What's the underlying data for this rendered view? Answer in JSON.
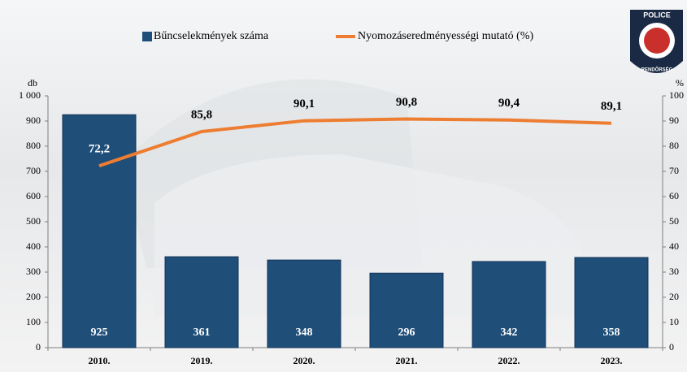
{
  "chart_data": {
    "type": "bar_line",
    "categories": [
      "2010.",
      "2019.",
      "2020.",
      "2021.",
      "2022.",
      "2023."
    ],
    "series": [
      {
        "name": "Bűncselekmények száma",
        "type": "bar",
        "color": "#1f4e79",
        "values": [
          925,
          361,
          348,
          296,
          342,
          358
        ]
      },
      {
        "name": "Nyomozáseredményességi mutató (%)",
        "type": "line",
        "axis": "y2",
        "color": "#ed7d31",
        "values": [
          72.2,
          85.8,
          90.1,
          90.8,
          90.4,
          89.1
        ],
        "value_labels": [
          "72,2",
          "85,8",
          "90,1",
          "90,8",
          "90,4",
          "89,1"
        ]
      }
    ],
    "y_label": "db",
    "y2_label": "%",
    "ylim": [
      0,
      1000
    ],
    "yticks": [
      0,
      100,
      200,
      300,
      400,
      500,
      600,
      700,
      800,
      900,
      {
        "value": 1000,
        "label": "1 000"
      }
    ],
    "y2lim": [
      0,
      100
    ],
    "y2ticks": [
      0,
      10,
      20,
      30,
      40,
      50,
      60,
      70,
      80,
      90,
      100
    ],
    "logo": {
      "top": "POLICE",
      "bottom": "RENDŐRSÉG"
    }
  }
}
